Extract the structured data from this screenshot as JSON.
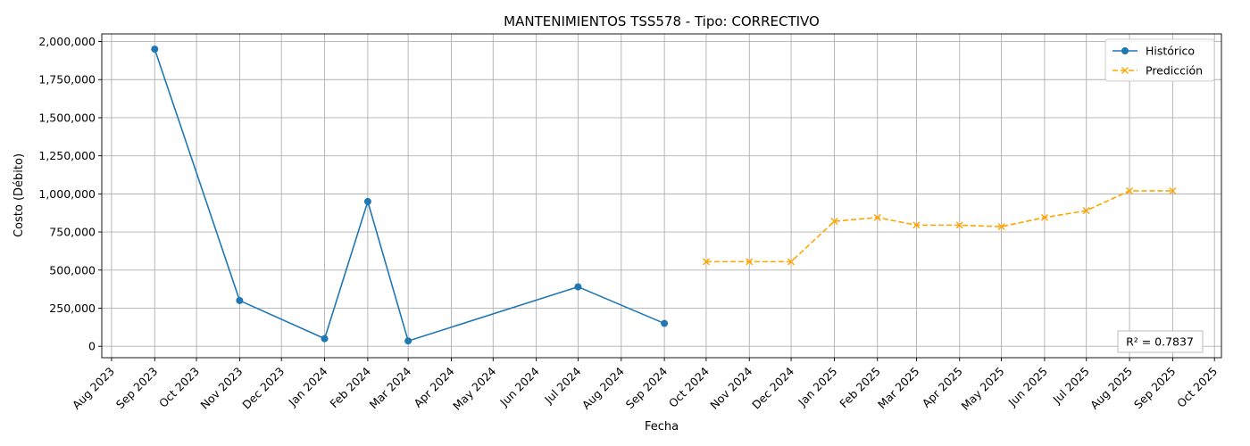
{
  "chart_data": {
    "type": "line",
    "title": "MANTENIMIENTOS TSS578 - Tipo: CORRECTIVO",
    "xlabel": "Fecha",
    "ylabel": "Costo (Débito)",
    "x_ticks": [
      "2023-08-01",
      "2023-09-01",
      "2023-10-01",
      "2023-11-01",
      "2023-12-01",
      "2024-01-01",
      "2024-02-01",
      "2024-03-01",
      "2024-04-01",
      "2024-05-01",
      "2024-06-01",
      "2024-07-01",
      "2024-08-01",
      "2024-09-01",
      "2024-10-01",
      "2024-11-01",
      "2024-12-01",
      "2025-01-01",
      "2025-02-01",
      "2025-03-01",
      "2025-04-01",
      "2025-05-01",
      "2025-06-01",
      "2025-07-01",
      "2025-08-01",
      "2025-09-01",
      "2025-10-01"
    ],
    "x_tick_labels": [
      "Aug 2023",
      "Sep 2023",
      "Oct 2023",
      "Nov 2023",
      "Dec 2023",
      "Jan 2024",
      "Feb 2024",
      "Mar 2024",
      "Apr 2024",
      "May 2024",
      "Jun 2024",
      "Jul 2024",
      "Aug 2024",
      "Sep 2024",
      "Oct 2024",
      "Nov 2024",
      "Dec 2024",
      "Jan 2025",
      "Feb 2025",
      "Mar 2025",
      "Apr 2025",
      "May 2025",
      "Jun 2025",
      "Jul 2025",
      "Aug 2025",
      "Sep 2025",
      "Oct 2025"
    ],
    "xlim": [
      "2023-07-25",
      "2025-10-06"
    ],
    "y_ticks": [
      0,
      250000,
      500000,
      750000,
      1000000,
      1250000,
      1500000,
      1750000,
      2000000
    ],
    "y_tick_labels": [
      "0",
      "250,000",
      "500,000",
      "750,000",
      "1,000,000",
      "1,250,000",
      "1,500,000",
      "1,750,000",
      "2,000,000"
    ],
    "ylim": [
      -75000,
      2050000
    ],
    "grid": true,
    "legend_position": "top-right",
    "series": [
      {
        "name": "Histórico",
        "color": "#1f77b4",
        "style": "solid",
        "marker": "circle",
        "points": [
          {
            "x": "2023-09-01",
            "y": 1950000
          },
          {
            "x": "2023-11-01",
            "y": 300000
          },
          {
            "x": "2024-01-01",
            "y": 50000
          },
          {
            "x": "2024-02-01",
            "y": 950000
          },
          {
            "x": "2024-03-01",
            "y": 35000
          },
          {
            "x": "2024-07-01",
            "y": 390000
          },
          {
            "x": "2024-09-01",
            "y": 150000
          }
        ]
      },
      {
        "name": "Predicción",
        "color": "#ffa500",
        "style": "dashed",
        "marker": "x",
        "points": [
          {
            "x": "2024-10-01",
            "y": 555000
          },
          {
            "x": "2024-11-01",
            "y": 555000
          },
          {
            "x": "2024-12-01",
            "y": 555000
          },
          {
            "x": "2025-01-01",
            "y": 820000
          },
          {
            "x": "2025-02-01",
            "y": 845000
          },
          {
            "x": "2025-03-01",
            "y": 795000
          },
          {
            "x": "2025-04-01",
            "y": 795000
          },
          {
            "x": "2025-05-01",
            "y": 785000
          },
          {
            "x": "2025-06-01",
            "y": 845000
          },
          {
            "x": "2025-07-01",
            "y": 890000
          },
          {
            "x": "2025-08-01",
            "y": 1020000
          },
          {
            "x": "2025-09-01",
            "y": 1020000
          }
        ]
      }
    ],
    "annotation": "R² = 0.7837"
  }
}
